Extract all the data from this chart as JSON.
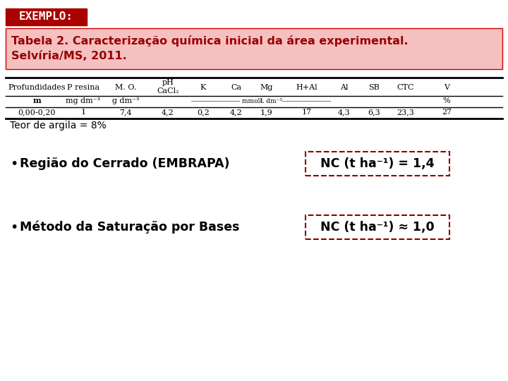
{
  "bg_color": "#ffffff",
  "exemplo_label": "EXEMPLO:",
  "exemplo_bg": "#aa0000",
  "exemplo_text_color": "#ffffff",
  "title_text_line1": "Tabela 2. Caracterização química inicial da área experimental.",
  "title_text_line2": "Selvíria/MS, 2011.",
  "title_bg": "#f5c0c0",
  "title_border_color": "#cc0000",
  "title_text_color": "#990000",
  "col_positions": [
    52,
    118,
    178,
    238,
    288,
    335,
    378,
    435,
    488,
    530,
    575,
    633,
    690
  ],
  "headers": [
    "Profundidades",
    "P resina",
    "M. O.",
    "pH",
    "K",
    "Ca",
    "Mg",
    "H+Al",
    "Al",
    "SB",
    "CTC",
    "V"
  ],
  "table_data": [
    "0,00-0,20",
    "1",
    "7,4",
    "4,2",
    "0,2",
    "4,2",
    "1,9",
    "17",
    "4,3",
    "6,3",
    "23,3",
    "27"
  ],
  "teor_text": "Teor de argila = 8%",
  "bullet1_text": "Região do Cerrado (EMBRAPA)",
  "bullet1_nc": "NC (t ha⁻¹) = 1,4",
  "bullet2_text": "Método da Saturação por Bases",
  "bullet2_nc": "NC (t ha⁻¹) ≈ 1,0",
  "dark_red": "#8b0000",
  "line_color": "#333333",
  "table_font_size": 8.0,
  "bullet_font_size": 12.5,
  "nc_font_size": 12.5,
  "title_font_size": 11.5,
  "exemplo_font_size": 11.5
}
